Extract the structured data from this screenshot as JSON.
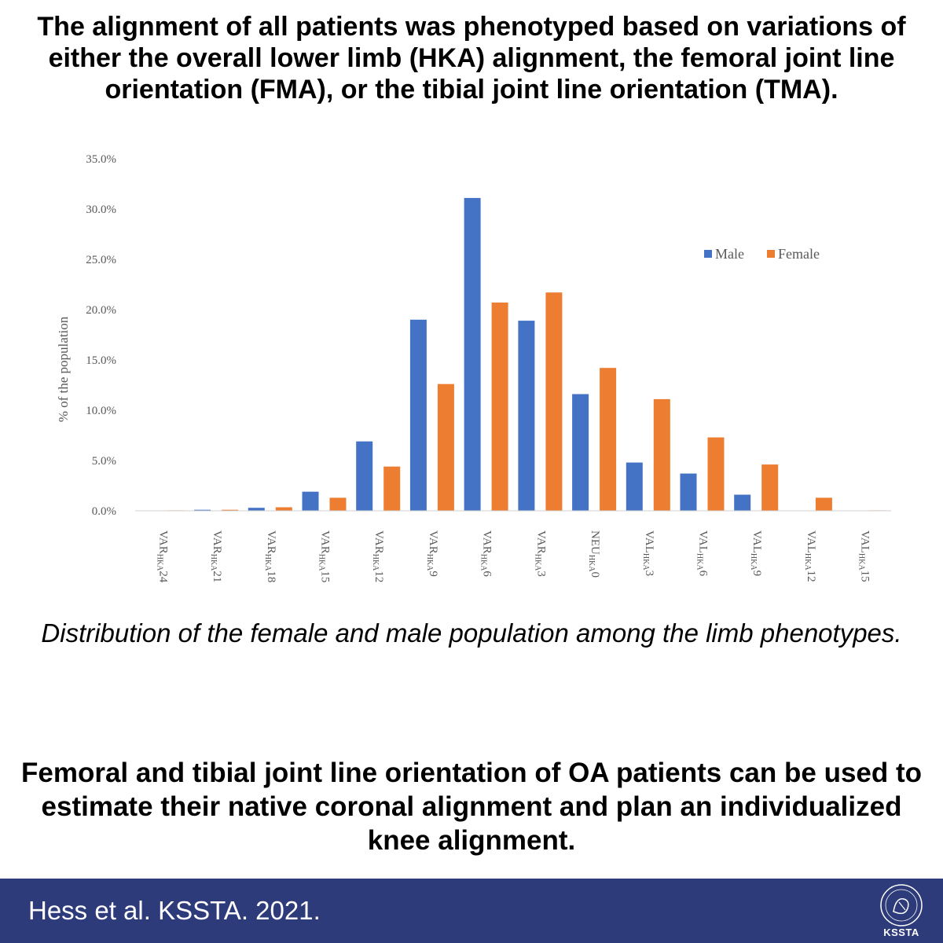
{
  "headline": "The alignment of all patients was phenotyped based on variations of either the overall lower limb (HKA) alignment, the femoral joint line orientation (FMA), or the tibial joint line orientation (TMA).",
  "caption": "Distribution of the female and male population among the limb phenotypes.",
  "conclusion": "Femoral and tibial joint line orientation of OA patients can be used to estimate their native coronal alignment and plan an individualized knee alignment.",
  "footer": {
    "citation": "Hess et al. KSSTA. 2021.",
    "logo_name": "KSSTA"
  },
  "colors": {
    "male": "#4472c4",
    "female": "#ed7d31",
    "footer_bg": "#2e3b7a"
  },
  "chart_data": {
    "type": "bar",
    "title": "",
    "xlabel": "",
    "ylabel": "% of the population",
    "ylim": [
      0,
      35
    ],
    "y_ticks": [
      "0.0%",
      "5.0%",
      "10.0%",
      "15.0%",
      "20.0%",
      "25.0%",
      "30.0%",
      "35.0%"
    ],
    "grid": false,
    "legend_position": "top-right",
    "categories": [
      {
        "prefix": "VAR",
        "sub": "HKA",
        "num": "24"
      },
      {
        "prefix": "VAR",
        "sub": "HKA",
        "num": "21"
      },
      {
        "prefix": "VAR",
        "sub": "HKA",
        "num": "18"
      },
      {
        "prefix": "VAR",
        "sub": "HKA",
        "num": "15"
      },
      {
        "prefix": "VAR",
        "sub": "HKA",
        "num": "12"
      },
      {
        "prefix": "VAR",
        "sub": "HKA",
        "num": "9"
      },
      {
        "prefix": "VAR",
        "sub": "HKA",
        "num": "6"
      },
      {
        "prefix": "VAR",
        "sub": "HKA",
        "num": "3"
      },
      {
        "prefix": "NEU",
        "sub": "HKA",
        "num": "0"
      },
      {
        "prefix": "VAL",
        "sub": "HKA",
        "num": "3"
      },
      {
        "prefix": "VAL",
        "sub": "HKA",
        "num": "6"
      },
      {
        "prefix": "VAL",
        "sub": "HKA",
        "num": "9"
      },
      {
        "prefix": "VAL",
        "sub": "HKA",
        "num": "12"
      },
      {
        "prefix": "VAL",
        "sub": "HKA",
        "num": "15"
      }
    ],
    "series": [
      {
        "name": "Male",
        "values": [
          0.0,
          0.1,
          0.3,
          1.9,
          6.9,
          19.0,
          31.1,
          18.9,
          11.6,
          4.8,
          3.7,
          1.6,
          0.0,
          0.0
        ]
      },
      {
        "name": "Female",
        "values": [
          0.05,
          0.1,
          0.35,
          1.3,
          4.4,
          12.6,
          20.7,
          21.7,
          14.2,
          11.1,
          7.3,
          4.6,
          1.3,
          0.05
        ]
      }
    ]
  }
}
